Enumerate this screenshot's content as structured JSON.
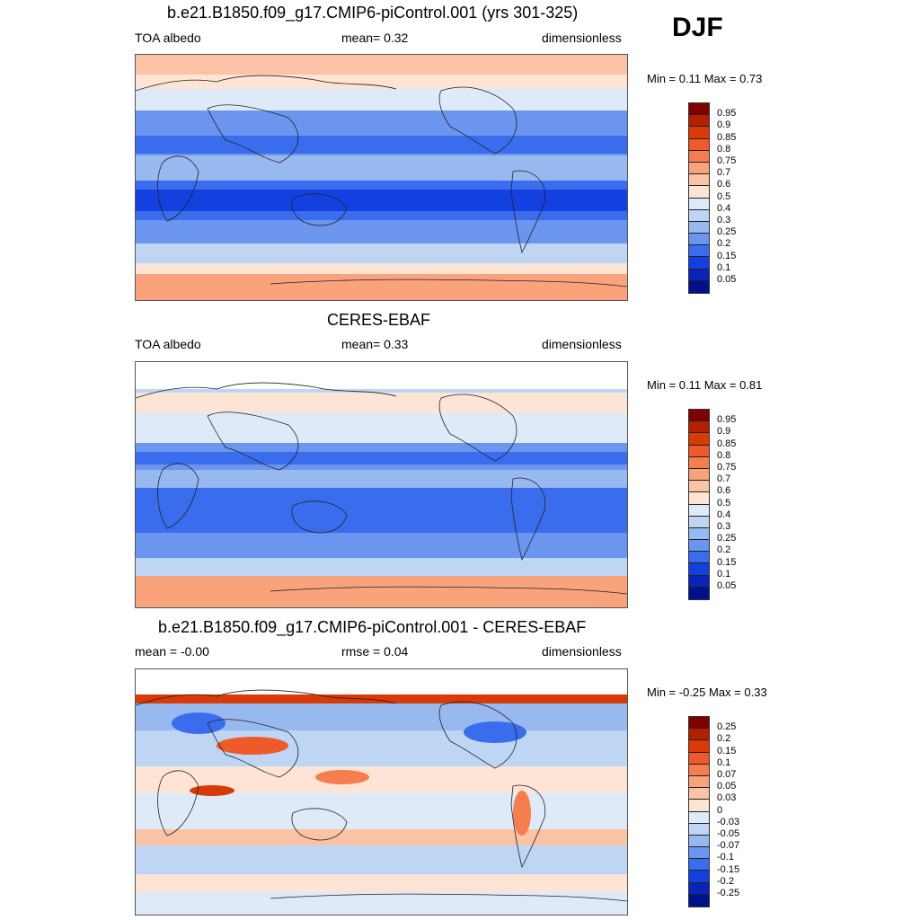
{
  "season": "DJF",
  "panels": [
    {
      "title": "b.e21.B1850.f09_g17.CMIP6-piControl.001 (yrs 301-325)",
      "left_text": "TOA albedo",
      "mid_text": "mean=   0.32",
      "right_text": "dimensionless",
      "minmax": "Min =   0.11 Max =   0.73",
      "colorbar": {
        "labels": [
          "0.95",
          "0.9",
          "0.85",
          "0.8",
          "0.75",
          "0.7",
          "0.6",
          "0.5",
          "0.4",
          "0.3",
          "0.25",
          "0.2",
          "0.15",
          "0.1",
          "0.05"
        ],
        "colors": [
          "#7f0000",
          "#b22000",
          "#d83a08",
          "#ee5a2a",
          "#f67d4e",
          "#f8a37c",
          "#fbc3a6",
          "#fde4d4",
          "#dfeaf9",
          "#bed5f4",
          "#98b8f0",
          "#6b95ee",
          "#3a6ded",
          "#1540e0",
          "#0a23b8",
          "#00108c"
        ]
      }
    },
    {
      "title": "CERES-EBAF",
      "left_text": "TOA albedo",
      "mid_text": "mean=   0.33",
      "right_text": "dimensionless",
      "minmax": "Min =   0.11 Max =   0.81",
      "colorbar": {
        "labels": [
          "0.95",
          "0.9",
          "0.85",
          "0.8",
          "0.75",
          "0.7",
          "0.6",
          "0.5",
          "0.4",
          "0.3",
          "0.25",
          "0.2",
          "0.15",
          "0.1",
          "0.05"
        ],
        "colors": [
          "#7f0000",
          "#b22000",
          "#d83a08",
          "#ee5a2a",
          "#f67d4e",
          "#f8a37c",
          "#fbc3a6",
          "#fde4d4",
          "#dfeaf9",
          "#bed5f4",
          "#98b8f0",
          "#6b95ee",
          "#3a6ded",
          "#1540e0",
          "#0a23b8",
          "#00108c"
        ]
      }
    },
    {
      "title": "b.e21.B1850.f09_g17.CMIP6-piControl.001 - CERES-EBAF",
      "left_text": "mean =  -0.00",
      "mid_text": "rmse =   0.04",
      "right_text": "dimensionless",
      "minmax": "Min =  -0.25 Max =   0.33",
      "colorbar": {
        "labels": [
          "0.25",
          "0.2",
          "0.15",
          "0.1",
          "0.07",
          "0.05",
          "0.03",
          "0",
          "-0.03",
          "-0.05",
          "-0.07",
          "-0.1",
          "-0.15",
          "-0.2",
          "-0.25"
        ],
        "colors": [
          "#7f0000",
          "#b22000",
          "#d83a08",
          "#ee5a2a",
          "#f67d4e",
          "#f8a37c",
          "#fbc3a6",
          "#fde4d4",
          "#dfeaf9",
          "#bed5f4",
          "#98b8f0",
          "#6b95ee",
          "#3a6ded",
          "#1540e0",
          "#0a23b8",
          "#00108c"
        ]
      }
    }
  ]
}
